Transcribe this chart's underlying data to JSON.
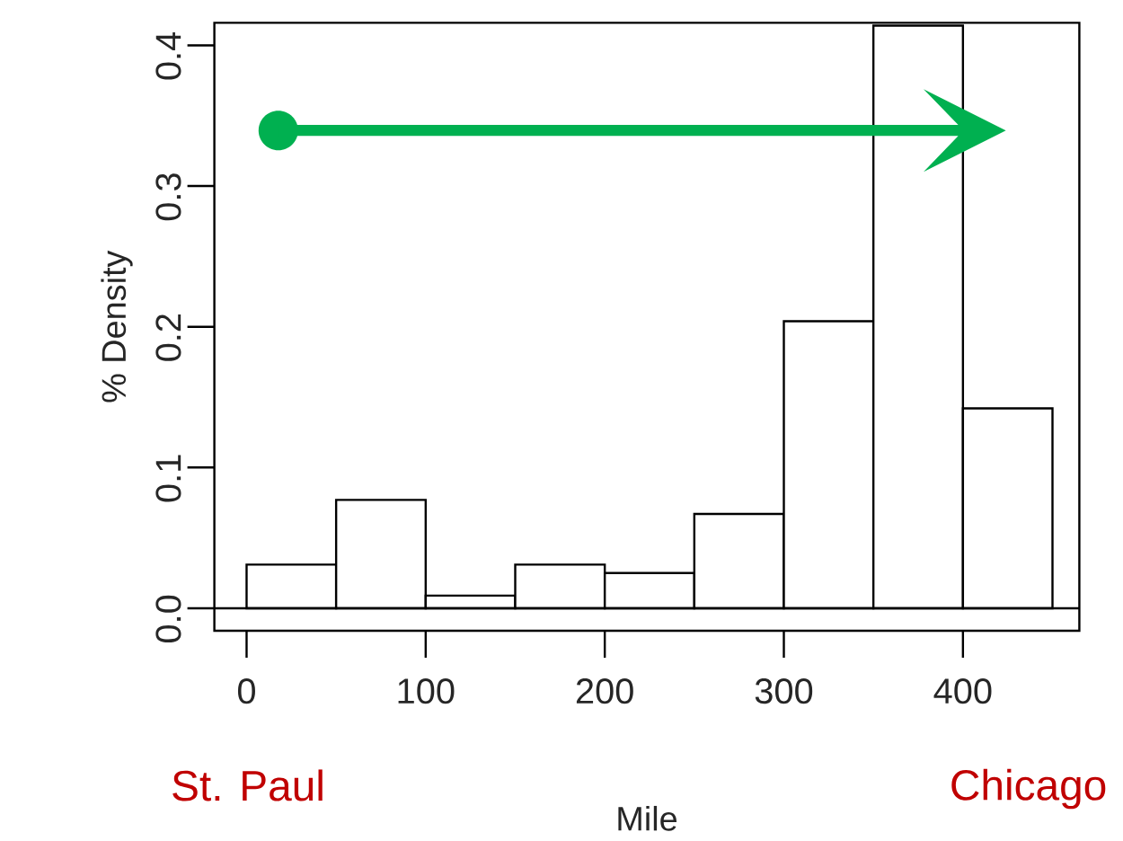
{
  "chart_data": {
    "type": "histogram",
    "xlabel": "Mile",
    "ylabel": "% Density",
    "bins": [
      0,
      50,
      100,
      150,
      200,
      250,
      300,
      350,
      400,
      450
    ],
    "values": [
      0.031,
      0.077,
      0.009,
      0.031,
      0.025,
      0.067,
      0.204,
      0.414,
      0.142
    ],
    "color": "#ffffff",
    "xlim": [
      -18,
      465
    ],
    "ylim": [
      -0.016,
      0.416
    ],
    "xticks": [
      0,
      100,
      200,
      300,
      400
    ],
    "yticks": [
      {
        "value": 0,
        "label": "0.0"
      },
      0.1,
      0.2,
      0.3,
      0.4
    ],
    "ref_lines": [
      {
        "axis": "y",
        "value": 0,
        "color": "#000000"
      }
    ],
    "annotations": [
      "St. Paul",
      "Chicago"
    ],
    "grid": false
  }
}
